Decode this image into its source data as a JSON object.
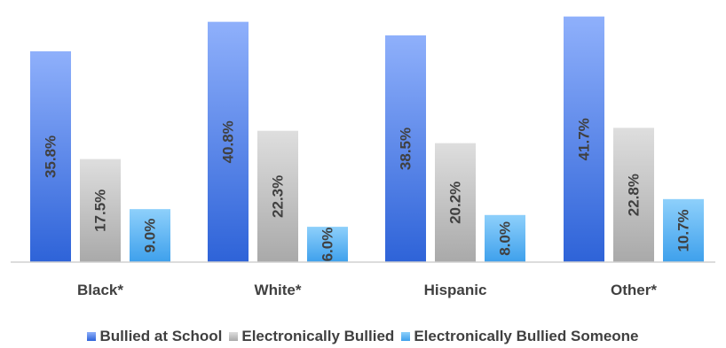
{
  "chart_data": {
    "type": "bar",
    "categories": [
      "Black*",
      "White*",
      "Hispanic",
      "Other*"
    ],
    "series": [
      {
        "name": "Bullied at School",
        "values": [
          35.8,
          40.8,
          38.5,
          41.7
        ],
        "labels": [
          "35.8%",
          "40.8%",
          "38.5%",
          "41.7%"
        ],
        "color_top": "#8fb0fb",
        "color_bottom": "#2e63d8"
      },
      {
        "name": "Electronically Bullied",
        "values": [
          17.5,
          22.3,
          20.2,
          22.8
        ],
        "labels": [
          "17.5%",
          "22.3%",
          "20.2%",
          "22.8%"
        ],
        "color_top": "#dedede",
        "color_bottom": "#a9a9a9"
      },
      {
        "name": "Electronically Bullied Someone",
        "values": [
          9.0,
          6.0,
          8.0,
          10.7
        ],
        "labels": [
          "9.0%",
          "6.0%",
          "8.0%",
          "10.7%"
        ],
        "color_top": "#8ed0fb",
        "color_bottom": "#3ea0ec"
      }
    ],
    "title": "",
    "xlabel": "",
    "ylabel": "",
    "ylim": [
      0,
      43
    ],
    "grid": false,
    "legend_position": "bottom"
  }
}
